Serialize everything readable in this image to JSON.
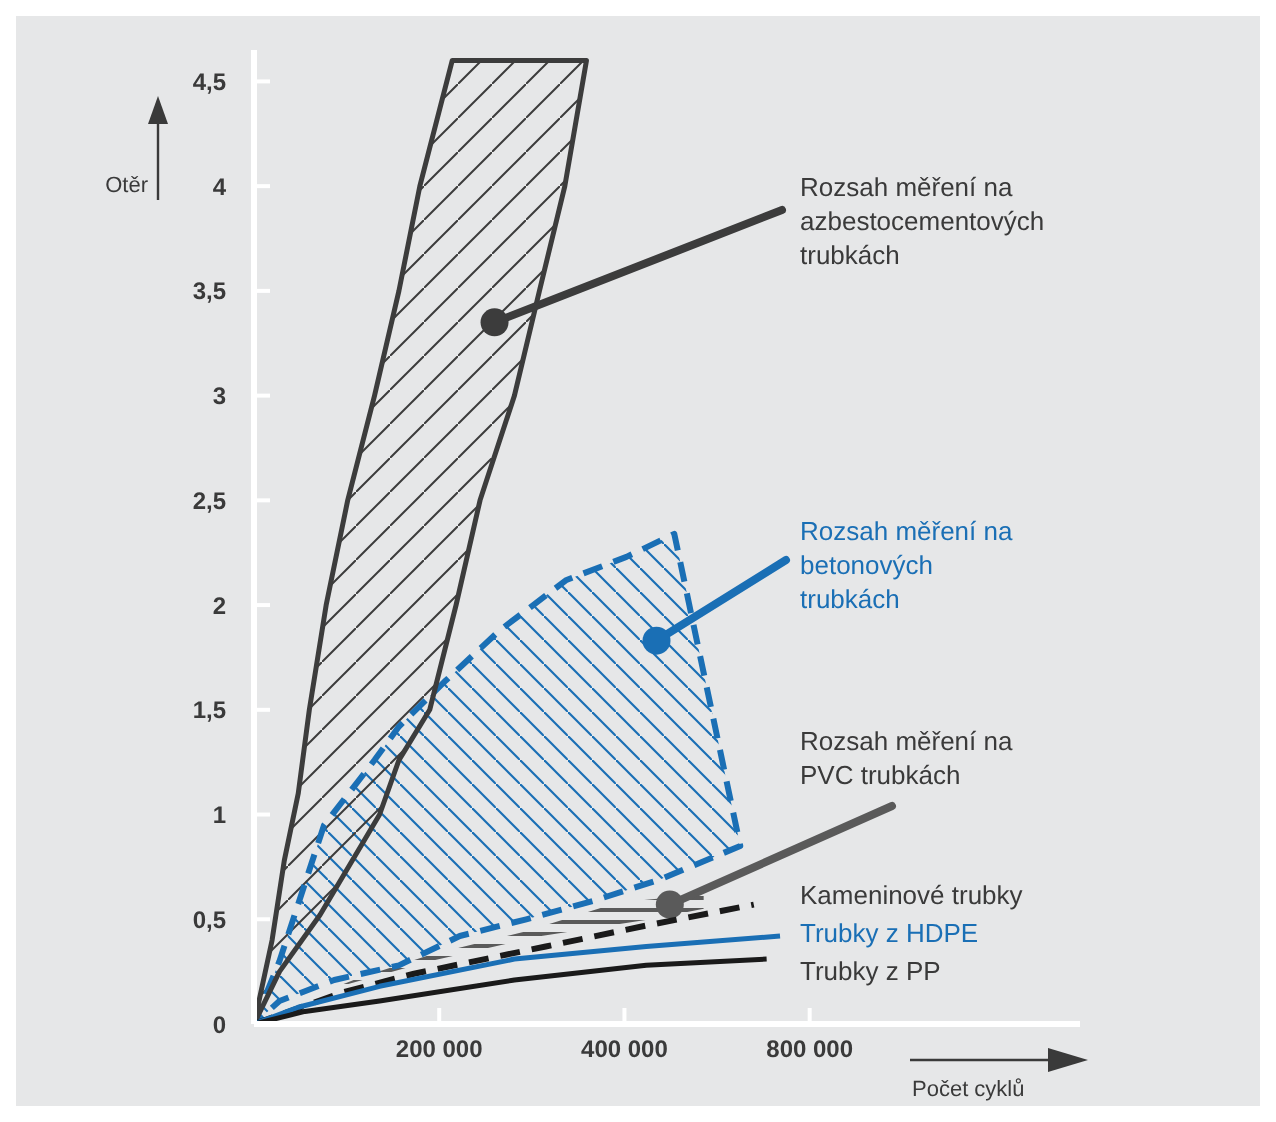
{
  "chart_data": {
    "type": "line",
    "xlabel": "Počet cyklů",
    "ylabel": "Otěr",
    "legend": false,
    "log": "x",
    "xlim": [
      100000,
      2200000
    ],
    "xticks": [
      {
        "value": 200000,
        "label": "200 000"
      },
      {
        "value": 400000,
        "label": "400 000"
      },
      {
        "value": 800000,
        "label": "800 000"
      }
    ],
    "ylim": [
      0,
      4.65
    ],
    "yticks": [
      0,
      {
        "value": 0.5,
        "label": "0,5"
      },
      1,
      {
        "value": 1.5,
        "label": "1,5"
      },
      2,
      {
        "value": 2.5,
        "label": "2,5"
      },
      3,
      {
        "value": 3.5,
        "label": "3,5"
      },
      4,
      {
        "value": 4.5,
        "label": "4,5"
      }
    ],
    "series": [
      {
        "type": "area",
        "color": "#3c3c3c",
        "line_style": "solid",
        "x": [
          100000,
          107000,
          112000,
          118000,
          123000,
          131000,
          142000,
          157000,
          172000,
          186000,
          210000,
          347000,
          320000,
          291000,
          265000,
          233000,
          213000,
          193000,
          172000,
          160000,
          128000,
          110000,
          100000
        ],
        "values": [
          0,
          0.4,
          0.78,
          1.1,
          1.5,
          2,
          2.5,
          3,
          3.5,
          4,
          4.6,
          4.6,
          4,
          3.5,
          3,
          2.5,
          2,
          1.5,
          1.26,
          1,
          0.52,
          0.25,
          0
        ]
      },
      {
        "type": "area",
        "color": "#1a6fb5",
        "line_style": "dashed",
        "x": [
          100000,
          110000,
          130000,
          157000,
          172000,
          205000,
          251000,
          322000,
          403000,
          482000,
          617000,
          457000,
          358000,
          277000,
          216000,
          172000,
          135000,
          110000,
          100000
        ],
        "values": [
          0,
          0.3,
          0.95,
          1.26,
          1.42,
          1.64,
          1.88,
          2.12,
          2.23,
          2.34,
          0.85,
          0.69,
          0.59,
          0.5,
          0.42,
          0.28,
          0.21,
          0.11,
          0
        ]
      },
      {
        "type": "area",
        "color": "#5a5a5a",
        "x": [
          134000,
          193000,
          293000,
          441000,
          538000,
          538000,
          391000,
          275000,
          193000,
          148000
        ],
        "values": [
          0.17,
          0.3,
          0.42,
          0.5,
          0.55,
          0.62,
          0.58,
          0.44,
          0.33,
          0.22
        ]
      },
      {
        "name": "Kameninové trubky",
        "color": "#1a1a1a",
        "line_style": "dashed",
        "x": [
          100000,
          139000,
          182000,
          298000,
          434000,
          649000
        ],
        "values": [
          0,
          0.15,
          0.24,
          0.37,
          0.47,
          0.57
        ]
      },
      {
        "name": "Trubky z HDPE",
        "color": "#1a6fb5",
        "line_style": "solid",
        "x": [
          100000,
          118000,
          160000,
          265000,
          434000,
          716000
        ],
        "values": [
          0,
          0.08,
          0.18,
          0.31,
          0.37,
          0.42
        ]
      },
      {
        "name": "Trubky z PP",
        "color": "#1a1a1a",
        "line_style": "solid",
        "x": [
          100000,
          121000,
          160000,
          265000,
          434000,
          681000
        ],
        "values": [
          0,
          0.06,
          0.11,
          0.21,
          0.28,
          0.31
        ]
      }
    ],
    "annotations": [
      {
        "text": "Rozsah měření na azbestocementových trubkách",
        "x": 246000,
        "y": 3.35
      },
      {
        "text": "Rozsah měření na betonových trubkách",
        "x": 451000,
        "y": 1.83
      },
      {
        "text": "Rozsah měření na PVC trubkách",
        "x": 474000,
        "y": 0.57
      }
    ]
  }
}
